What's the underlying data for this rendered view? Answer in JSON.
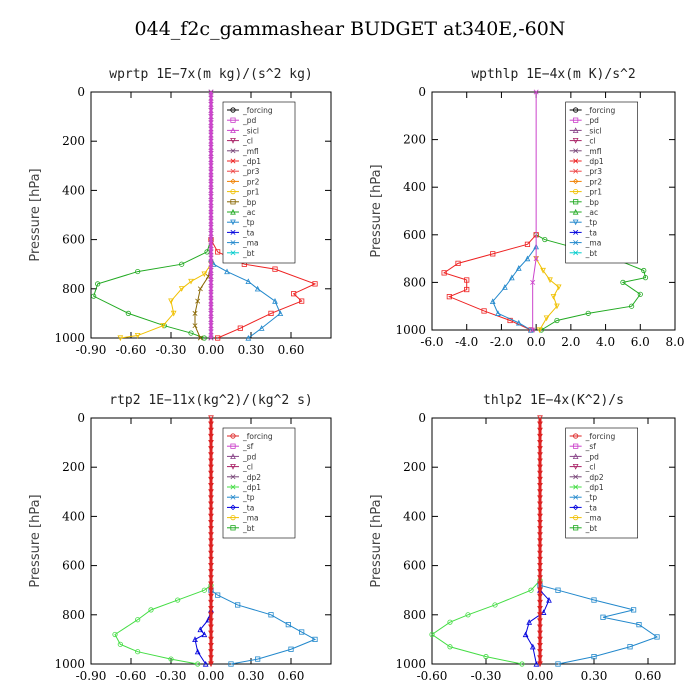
{
  "figure": {
    "title": "044_f2c_gammashear  BUDGET at340E,-60N"
  },
  "chart_data": [
    {
      "type": "line",
      "title": "wprtp   1E−7x(m kg)/(s^2 kg)",
      "ylabel": "Pressure [hPa]",
      "xlim": [
        -0.9,
        0.9
      ],
      "ylim": [
        1000,
        0
      ],
      "xticks": [
        "-0.90",
        "-0.60",
        "-0.30",
        "0.00",
        "0.30",
        "0.60"
      ],
      "xtick_values": [
        -0.9,
        -0.6,
        -0.3,
        0.0,
        0.3,
        0.6
      ],
      "yticks": [
        0,
        200,
        400,
        600,
        800,
        1000
      ],
      "legend": [
        "_forcing",
        "_pd",
        "_sicl",
        "_cl",
        "_mfl",
        "_dp1",
        "_pr3",
        "_pr2",
        "_pr1",
        "_bp",
        "_ac",
        "_tp",
        "_ta",
        "_ma",
        "_bt"
      ],
      "series": [
        {
          "name": "_ac",
          "color": "#22aa22",
          "x": [
            0,
            -0.03,
            -0.22,
            -0.55,
            -0.85,
            -0.88,
            -0.62,
            -0.35,
            -0.15,
            -0.05
          ],
          "y": [
            600,
            650,
            700,
            730,
            780,
            830,
            900,
            950,
            980,
            1000
          ]
        },
        {
          "name": "_dp1",
          "color": "#ee2222",
          "x": [
            0,
            0.05,
            0.25,
            0.48,
            0.78,
            0.62,
            0.68,
            0.45,
            0.22,
            0.05
          ],
          "y": [
            600,
            650,
            700,
            720,
            780,
            820,
            850,
            900,
            960,
            1000
          ]
        },
        {
          "name": "_tp",
          "color": "#2288cc",
          "x": [
            0,
            0.02,
            0.12,
            0.28,
            0.35,
            0.48,
            0.52,
            0.38,
            0.28
          ],
          "y": [
            680,
            700,
            730,
            770,
            800,
            850,
            900,
            960,
            1000
          ]
        },
        {
          "name": "_pr1",
          "color": "#f0c000",
          "x": [
            0,
            -0.05,
            -0.15,
            -0.22,
            -0.3,
            -0.28,
            -0.36,
            -0.55,
            -0.68
          ],
          "y": [
            700,
            740,
            770,
            800,
            850,
            900,
            950,
            990,
            1000
          ]
        },
        {
          "name": "_bp",
          "color": "#886600",
          "x": [
            0,
            -0.02,
            -0.08,
            -0.1,
            -0.12,
            -0.12,
            -0.08
          ],
          "y": [
            700,
            750,
            800,
            850,
            900,
            950,
            1000
          ]
        },
        {
          "name": "_forcing",
          "color": "#000000",
          "x": [
            0,
            0
          ],
          "y": [
            0,
            1000
          ]
        },
        {
          "name": "_sicl",
          "color": "#cc44cc",
          "x": [
            0,
            0
          ],
          "y": [
            0,
            1000
          ]
        }
      ]
    },
    {
      "type": "line",
      "title": "wpthlp   1E−4x(m K)/s^2",
      "ylabel": "Pressure [hPa]",
      "xlim": [
        -6.0,
        8.0
      ],
      "ylim": [
        1000,
        0
      ],
      "xticks": [
        "-6.0",
        "-4.0",
        "-2.0",
        "0.0",
        "2.0",
        "4.0",
        "6.0",
        "8.0"
      ],
      "xtick_values": [
        -6,
        -4,
        -2,
        0,
        2,
        4,
        6,
        8
      ],
      "yticks": [
        0,
        200,
        400,
        600,
        800,
        1000
      ],
      "legend": [
        "_forcing",
        "_pd",
        "_sicl",
        "_cl",
        "_mfl",
        "_dp1",
        "_pr3",
        "_pr2",
        "_pr1",
        "_bp",
        "_ac",
        "_tp",
        "_ta",
        "_ma",
        "_bt"
      ],
      "series": [
        {
          "name": "_ac",
          "color": "#22aa22",
          "x": [
            0,
            0.5,
            2.5,
            4.5,
            6.2,
            6.3,
            5.0,
            6.0,
            5.5,
            3.0,
            1.2,
            0.3
          ],
          "y": [
            600,
            620,
            660,
            700,
            750,
            780,
            800,
            850,
            900,
            930,
            960,
            1000
          ]
        },
        {
          "name": "_dp1",
          "color": "#ee2222",
          "x": [
            0,
            -0.5,
            -2.5,
            -4.5,
            -5.3,
            -4.0,
            -4.0,
            -5.0,
            -3.0,
            -1.5,
            -0.3
          ],
          "y": [
            600,
            640,
            680,
            720,
            760,
            790,
            830,
            860,
            920,
            960,
            1000
          ]
        },
        {
          "name": "_tp",
          "color": "#2288cc",
          "x": [
            0,
            -0.5,
            -1.0,
            -1.4,
            -1.8,
            -2.5,
            -2.2,
            -1.0,
            -0.3
          ],
          "y": [
            650,
            700,
            740,
            780,
            820,
            880,
            930,
            970,
            1000
          ]
        },
        {
          "name": "_pr1",
          "color": "#f0c000",
          "x": [
            0,
            0.4,
            0.8,
            1.3,
            1.0,
            1.2,
            0.6,
            0.2
          ],
          "y": [
            700,
            750,
            790,
            820,
            860,
            900,
            950,
            1000
          ]
        },
        {
          "name": "_pd",
          "color": "#cc44cc",
          "x": [
            0,
            0,
            -0.2,
            -0.2
          ],
          "y": [
            0,
            700,
            800,
            1000
          ]
        }
      ]
    },
    {
      "type": "line",
      "title": "rtp2   1E−11x(kg^2)/(kg^2 s)",
      "ylabel": "Pressure [hPa]",
      "xlim": [
        -0.9,
        0.9
      ],
      "ylim": [
        1000,
        0
      ],
      "xticks": [
        "-0.90",
        "-0.60",
        "-0.30",
        "0.00",
        "0.30",
        "0.60"
      ],
      "xtick_values": [
        -0.9,
        -0.6,
        -0.3,
        0.0,
        0.3,
        0.6
      ],
      "yticks": [
        0,
        200,
        400,
        600,
        800,
        1000
      ],
      "legend": [
        "_forcing",
        "_sf",
        "_pd",
        "_cl",
        "_dp2",
        "_dp1",
        "_tp",
        "_ta",
        "_ma",
        "_bt"
      ],
      "series": [
        {
          "name": "_dp1",
          "color": "#44dd44",
          "x": [
            0,
            -0.05,
            -0.25,
            -0.45,
            -0.55,
            -0.72,
            -0.68,
            -0.55,
            -0.3,
            -0.1
          ],
          "y": [
            680,
            700,
            740,
            780,
            820,
            880,
            920,
            950,
            980,
            1000
          ]
        },
        {
          "name": "_tp",
          "color": "#2288cc",
          "x": [
            0,
            0.05,
            0.2,
            0.45,
            0.58,
            0.68,
            0.78,
            0.6,
            0.35,
            0.15
          ],
          "y": [
            700,
            720,
            760,
            800,
            840,
            870,
            900,
            940,
            980,
            1000
          ]
        },
        {
          "name": "_ta",
          "color": "#0000dd",
          "x": [
            0,
            -0.02,
            -0.08,
            -0.05,
            -0.12,
            -0.1,
            -0.04
          ],
          "y": [
            780,
            820,
            860,
            880,
            900,
            950,
            1000
          ]
        },
        {
          "name": "_forcing",
          "color": "#dd2222",
          "x": [
            0,
            0
          ],
          "y": [
            0,
            1000
          ]
        }
      ]
    },
    {
      "type": "line",
      "title": "thlp2   1E−4x(K^2)/s",
      "ylabel": "Pressure [hPa]",
      "xlim": [
        -0.6,
        0.75
      ],
      "ylim": [
        1000,
        0
      ],
      "xticks": [
        "-0.60",
        "-0.30",
        "0.00",
        "0.30",
        "0.60"
      ],
      "xtick_values": [
        -0.6,
        -0.3,
        0.0,
        0.3,
        0.6
      ],
      "yticks": [
        0,
        200,
        400,
        600,
        800,
        1000
      ],
      "legend": [
        "_forcing",
        "_sf",
        "_pd",
        "_cl",
        "_dp2",
        "_dp1",
        "_tp",
        "_ta",
        "_ma",
        "_bt"
      ],
      "series": [
        {
          "name": "_dp1",
          "color": "#44dd44",
          "x": [
            0,
            -0.05,
            -0.25,
            -0.4,
            -0.5,
            -0.6,
            -0.5,
            -0.3,
            -0.1
          ],
          "y": [
            660,
            700,
            760,
            800,
            830,
            880,
            930,
            970,
            1000
          ]
        },
        {
          "name": "_tp",
          "color": "#2288cc",
          "x": [
            0,
            0.1,
            0.3,
            0.52,
            0.35,
            0.55,
            0.65,
            0.5,
            0.3,
            0.1
          ],
          "y": [
            680,
            700,
            740,
            780,
            810,
            840,
            890,
            930,
            970,
            1000
          ]
        },
        {
          "name": "_ta",
          "color": "#0000dd",
          "x": [
            0,
            0.05,
            0.02,
            -0.06,
            -0.08,
            -0.04,
            -0.02
          ],
          "y": [
            700,
            740,
            790,
            830,
            880,
            930,
            1000
          ]
        },
        {
          "name": "_forcing",
          "color": "#dd2222",
          "x": [
            0,
            0
          ],
          "y": [
            0,
            1000
          ]
        }
      ]
    }
  ]
}
